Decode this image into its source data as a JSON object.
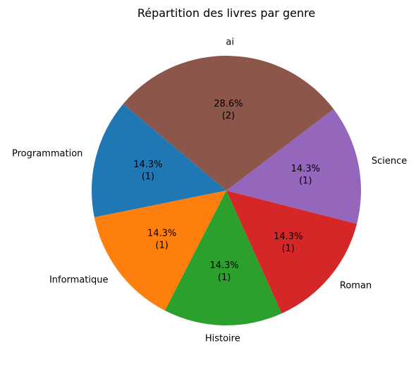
{
  "chart_data": {
    "type": "pie",
    "title": "Répartition des livres par genre",
    "slices": [
      {
        "label": "Programmation",
        "value": 1,
        "pct": "14.3%",
        "count": "(1)",
        "color": "#1f77b4"
      },
      {
        "label": "Informatique",
        "value": 1,
        "pct": "14.3%",
        "count": "(1)",
        "color": "#ff7f0e"
      },
      {
        "label": "Histoire",
        "value": 1,
        "pct": "14.3%",
        "count": "(1)",
        "color": "#2ca02c"
      },
      {
        "label": "Roman",
        "value": 1,
        "pct": "14.3%",
        "count": "(1)",
        "color": "#d62728"
      },
      {
        "label": "Science",
        "value": 1,
        "pct": "14.3%",
        "count": "(1)",
        "color": "#9467bd"
      },
      {
        "label": "ai",
        "value": 2,
        "pct": "28.6%",
        "count": "(2)",
        "color": "#8c564b"
      }
    ],
    "start_angle_deg": 140,
    "direction": "counterclockwise"
  }
}
